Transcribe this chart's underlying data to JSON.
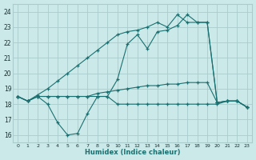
{
  "xlabel": "Humidex (Indice chaleur)",
  "background_color": "#cce9e9",
  "grid_color": "#aacccc",
  "line_color": "#1a7070",
  "xlim": [
    -0.5,
    23.5
  ],
  "ylim": [
    15.5,
    24.5
  ],
  "yticks": [
    16,
    17,
    18,
    19,
    20,
    21,
    22,
    23,
    24
  ],
  "xticks": [
    0,
    1,
    2,
    3,
    4,
    5,
    6,
    7,
    8,
    9,
    10,
    11,
    12,
    13,
    14,
    15,
    16,
    17,
    18,
    19,
    20,
    21,
    22,
    23
  ],
  "series": [
    {
      "x": [
        0,
        1,
        2,
        3,
        4,
        5,
        6,
        7,
        8,
        9,
        10,
        11,
        12,
        13,
        14,
        15,
        16,
        17,
        18,
        19,
        20,
        21,
        22,
        23
      ],
      "y": [
        18.5,
        18.2,
        18.5,
        18.0,
        16.8,
        16.0,
        16.1,
        17.4,
        18.5,
        18.5,
        18.0,
        18.0,
        18.0,
        18.0,
        18.0,
        18.0,
        18.0,
        18.0,
        18.0,
        18.0,
        18.0,
        18.2,
        18.2,
        17.8
      ]
    },
    {
      "x": [
        0,
        1,
        2,
        3,
        4,
        5,
        6,
        7,
        8,
        9,
        10,
        11,
        12,
        13,
        14,
        15,
        16,
        17,
        18,
        19,
        20,
        21,
        22,
        23
      ],
      "y": [
        18.5,
        18.2,
        18.5,
        18.5,
        18.5,
        18.5,
        18.5,
        18.5,
        18.7,
        18.8,
        18.9,
        19.0,
        19.1,
        19.2,
        19.2,
        19.3,
        19.3,
        19.4,
        19.4,
        19.4,
        18.1,
        18.2,
        18.2,
        17.8
      ]
    },
    {
      "x": [
        0,
        1,
        2,
        3,
        4,
        5,
        6,
        7,
        8,
        9,
        10,
        11,
        12,
        13,
        14,
        15,
        16,
        17,
        18,
        19,
        20,
        21,
        22,
        23
      ],
      "y": [
        18.5,
        18.2,
        18.6,
        19.0,
        19.5,
        20.0,
        20.5,
        21.0,
        21.5,
        22.0,
        22.5,
        22.7,
        22.8,
        23.0,
        23.3,
        23.0,
        23.8,
        23.3,
        23.3,
        23.3,
        18.1,
        18.2,
        18.2,
        17.8
      ]
    },
    {
      "x": [
        0,
        1,
        2,
        3,
        4,
        5,
        6,
        7,
        8,
        9,
        10,
        11,
        12,
        13,
        14,
        15,
        16,
        17,
        18,
        19,
        20,
        21,
        22,
        23
      ],
      "y": [
        18.5,
        18.2,
        18.5,
        18.5,
        18.5,
        18.5,
        18.5,
        18.5,
        18.5,
        18.5,
        19.6,
        21.9,
        22.5,
        21.6,
        22.7,
        22.8,
        23.1,
        23.8,
        23.3,
        23.3,
        18.1,
        18.2,
        18.2,
        17.8
      ]
    }
  ]
}
